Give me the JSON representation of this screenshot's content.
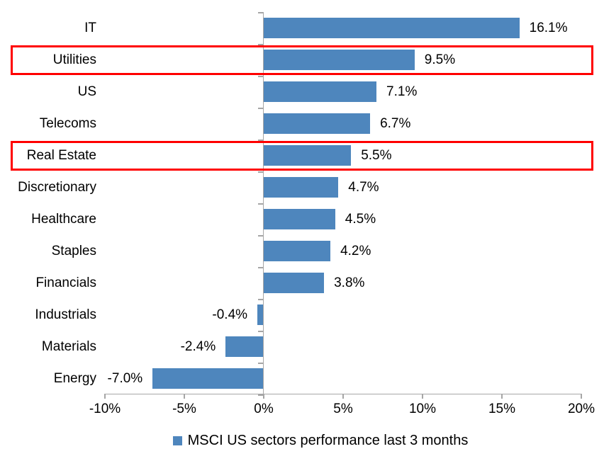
{
  "chart_data": {
    "type": "bar",
    "orientation": "horizontal",
    "title": "",
    "legend": "MSCI US sectors performance last 3 months",
    "legend_position": "bottom",
    "categories": [
      "IT",
      "Utilities",
      "US",
      "Telecoms",
      "Real Estate",
      "Discretionary",
      "Healthcare",
      "Staples",
      "Financials",
      "Industrials",
      "Materials",
      "Energy"
    ],
    "values": [
      16.1,
      9.5,
      7.1,
      6.7,
      5.5,
      4.7,
      4.5,
      4.2,
      3.8,
      -0.4,
      -2.4,
      -7.0
    ],
    "value_labels": [
      "16.1%",
      "9.5%",
      "7.1%",
      "6.7%",
      "5.5%",
      "4.7%",
      "4.5%",
      "4.2%",
      "3.8%",
      "-0.4%",
      "-2.4%",
      "-7.0%"
    ],
    "highlighted_categories": [
      "Utilities",
      "Real Estate"
    ],
    "xlim": [
      -10,
      20
    ],
    "x_ticks": [
      {
        "value": -10,
        "label": "-10%"
      },
      {
        "value": -5,
        "label": "-5%"
      },
      {
        "value": 0,
        "label": "0%"
      },
      {
        "value": 5,
        "label": "5%"
      },
      {
        "value": 10,
        "label": "10%"
      },
      {
        "value": 15,
        "label": "15%"
      },
      {
        "value": 20,
        "label": "20%"
      }
    ],
    "grid": false,
    "colors": {
      "bar": "#4E86BD",
      "highlight_box": "#FF0000",
      "axis": "#A6A6A6",
      "text": "#000000",
      "background": "#FFFFFF"
    }
  }
}
